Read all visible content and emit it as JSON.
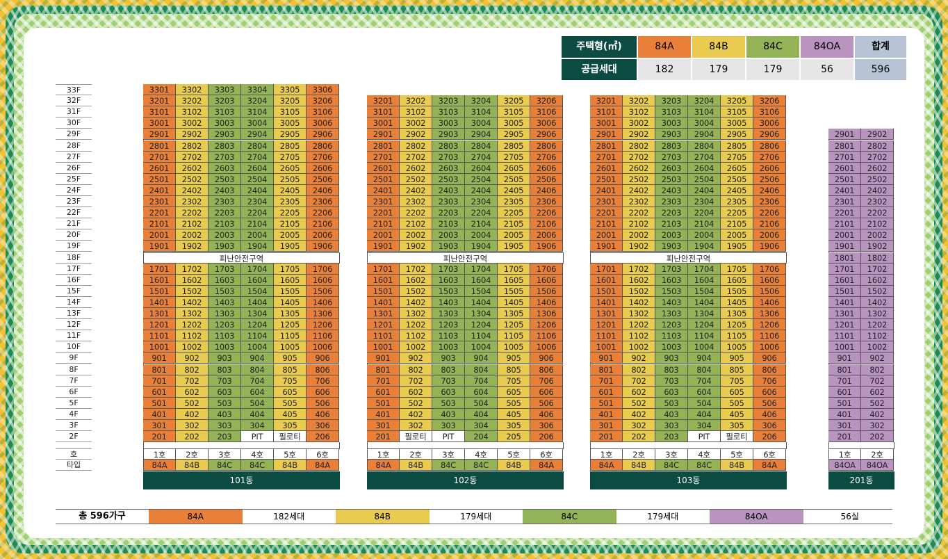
{
  "colors": {
    "84A": "#e8803a",
    "84B": "#e9cb4f",
    "84C": "#93b356",
    "84OA": "#b994c1",
    "dark": "#0c4b42",
    "total": "#b8c4d6"
  },
  "summary": {
    "header_label": "주택형(㎡)",
    "supply_label": "공급세대",
    "types": [
      {
        "name": "84A",
        "count": "182",
        "color": "#e8803a"
      },
      {
        "name": "84B",
        "count": "179",
        "color": "#e9cb4f"
      },
      {
        "name": "84C",
        "count": "179",
        "color": "#93b356"
      },
      {
        "name": "84OA",
        "count": "56",
        "color": "#b994c1"
      }
    ],
    "total_label": "합계",
    "total_value": "596"
  },
  "floors": [
    "33F",
    "32F",
    "31F",
    "30F",
    "29F",
    "28F",
    "27F",
    "26F",
    "25F",
    "24F",
    "23F",
    "22F",
    "21F",
    "20F",
    "19F",
    "18F",
    "17F",
    "16F",
    "15F",
    "14F",
    "13F",
    "12F",
    "11F",
    "10F",
    "9F",
    "8F",
    "7F",
    "6F",
    "5F",
    "4F",
    "3F",
    "2F"
  ],
  "row_labels": {
    "unit": "호",
    "type": "타입"
  },
  "refuge_label": "피난안전구역",
  "buildings": [
    {
      "name": "101동",
      "top": 33,
      "refuge": 18,
      "units": [
        "1호",
        "2호",
        "3호",
        "4호",
        "5호",
        "6호"
      ],
      "types": [
        "84A",
        "84B",
        "84C",
        "84C",
        "84B",
        "84A"
      ],
      "floor2": [
        "201",
        "202",
        "203",
        "PIT",
        "필로티",
        "206"
      ]
    },
    {
      "name": "102동",
      "top": 32,
      "refuge": 18,
      "units": [
        "1호",
        "2호",
        "3호",
        "4호",
        "5호",
        "6호"
      ],
      "types": [
        "84A",
        "84B",
        "84C",
        "84C",
        "84B",
        "84A"
      ],
      "floor2": [
        "201",
        "필로티",
        "PIT",
        "204",
        "205",
        "206"
      ]
    },
    {
      "name": "103동",
      "top": 32,
      "refuge": 18,
      "units": [
        "1호",
        "2호",
        "3호",
        "4호",
        "5호",
        "6호"
      ],
      "types": [
        "84A",
        "84B",
        "84C",
        "84C",
        "84B",
        "84A"
      ],
      "floor2": [
        "201",
        "202",
        "203",
        "PIT",
        "필로티",
        "206"
      ]
    },
    {
      "name": "201동",
      "top": 29,
      "refuge": null,
      "units": [
        "1호",
        "2호"
      ],
      "types": [
        "84OA",
        "84OA"
      ],
      "floor2": [
        "201",
        "202"
      ]
    }
  ],
  "legend": {
    "total": "총 596가구",
    "items": [
      {
        "type": "84A",
        "count": "182세대",
        "color": "#e8803a"
      },
      {
        "type": "84B",
        "count": "179세대",
        "color": "#e9cb4f"
      },
      {
        "type": "84C",
        "count": "179세대",
        "color": "#93b356"
      },
      {
        "type": "84OA",
        "count": "56실",
        "color": "#b994c1"
      }
    ]
  }
}
